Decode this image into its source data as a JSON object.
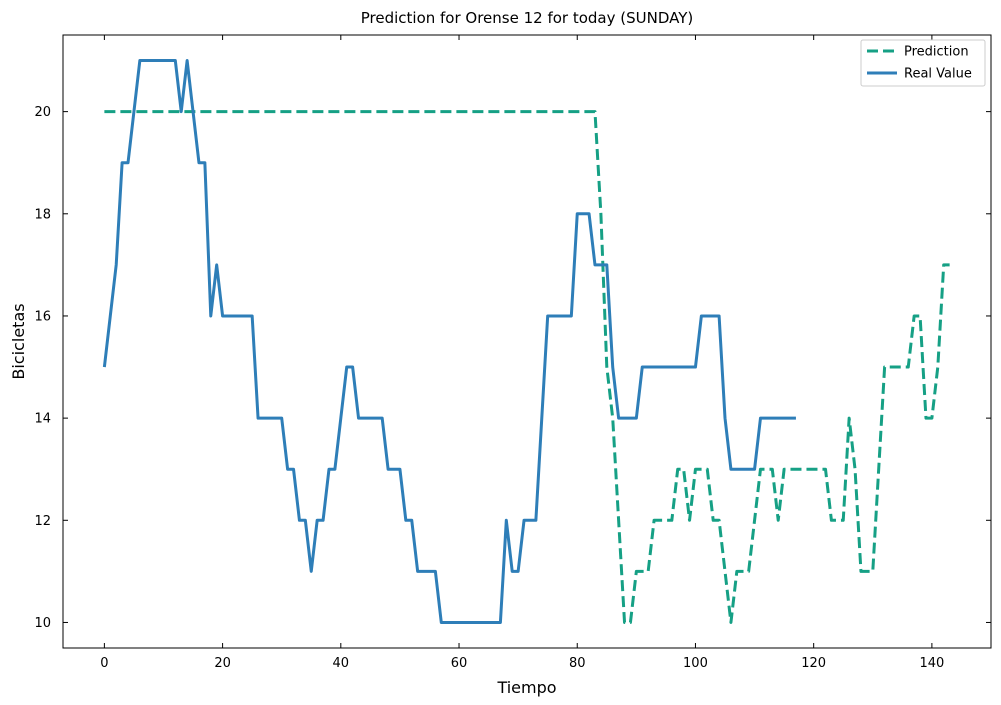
{
  "chart_data": {
    "type": "line",
    "title": "Prediction for Orense 12 for today (SUNDAY)",
    "xlabel": "Tiempo",
    "ylabel": "Bicicletas",
    "xlim": [
      -7,
      150
    ],
    "ylim": [
      9.5,
      21.5
    ],
    "xticks": [
      0,
      20,
      40,
      60,
      80,
      100,
      120,
      140
    ],
    "yticks": [
      10,
      12,
      14,
      16,
      18,
      20
    ],
    "grid": false,
    "legend_position": "top-right",
    "series": [
      {
        "name": "Prediction",
        "color": "#16a085",
        "style": "dashed",
        "x": [
          0,
          83,
          84,
          85,
          86,
          87,
          88,
          89,
          90,
          91,
          92,
          93,
          94,
          95,
          96,
          97,
          98,
          99,
          100,
          101,
          102,
          103,
          104,
          105,
          106,
          107,
          108,
          109,
          110,
          111,
          112,
          113,
          114,
          115,
          116,
          117,
          118,
          119,
          120,
          121,
          122,
          123,
          124,
          125,
          126,
          127,
          128,
          129,
          130,
          131,
          132,
          133,
          134,
          135,
          136,
          137,
          138,
          139,
          140,
          141,
          142,
          143
        ],
        "y": [
          20,
          20,
          18,
          15,
          14,
          12,
          10,
          10,
          11,
          11,
          11,
          12,
          12,
          12,
          12,
          13,
          13,
          12,
          13,
          13,
          13,
          12,
          12,
          11,
          10,
          11,
          11,
          11,
          12,
          13,
          13,
          13,
          12,
          13,
          13,
          13,
          13,
          13,
          13,
          13,
          13,
          12,
          12,
          12,
          14,
          13,
          11,
          11,
          11,
          13,
          15,
          15,
          15,
          15,
          15,
          16,
          16,
          14,
          14,
          15,
          17,
          17
        ]
      },
      {
        "name": "Real Value",
        "color": "#2e7eb8",
        "style": "solid",
        "x": [
          0,
          1,
          2,
          3,
          4,
          5,
          6,
          7,
          8,
          9,
          10,
          11,
          12,
          13,
          14,
          15,
          16,
          17,
          18,
          19,
          20,
          21,
          22,
          23,
          24,
          25,
          26,
          27,
          28,
          29,
          30,
          31,
          32,
          33,
          34,
          35,
          36,
          37,
          38,
          39,
          40,
          41,
          42,
          43,
          44,
          45,
          46,
          47,
          48,
          49,
          50,
          51,
          52,
          53,
          54,
          55,
          56,
          57,
          58,
          59,
          60,
          61,
          62,
          63,
          64,
          65,
          66,
          67,
          68,
          69,
          70,
          71,
          72,
          73,
          74,
          75,
          76,
          77,
          78,
          79,
          80,
          81,
          82,
          83,
          84,
          85,
          86,
          87,
          88,
          89,
          90,
          91,
          92,
          93,
          94,
          95,
          96,
          97,
          98,
          99,
          100,
          101,
          102,
          103,
          104,
          105,
          106,
          107,
          108,
          109,
          110,
          111,
          112,
          113,
          114,
          115,
          116,
          117
        ],
        "y": [
          15,
          16,
          17,
          19,
          19,
          20,
          21,
          21,
          21,
          21,
          21,
          21,
          21,
          20,
          21,
          20,
          19,
          19,
          16,
          17,
          16,
          16,
          16,
          16,
          16,
          16,
          14,
          14,
          14,
          14,
          14,
          13,
          13,
          12,
          12,
          11,
          12,
          12,
          13,
          13,
          14,
          15,
          15,
          14,
          14,
          14,
          14,
          14,
          13,
          13,
          13,
          12,
          12,
          11,
          11,
          11,
          11,
          10,
          10,
          10,
          10,
          10,
          10,
          10,
          10,
          10,
          10,
          10,
          12,
          11,
          11,
          12,
          12,
          12,
          14,
          16,
          16,
          16,
          16,
          16,
          18,
          18,
          18,
          17,
          17,
          17,
          15,
          14,
          14,
          14,
          14,
          15,
          15,
          15,
          15,
          15,
          15,
          15,
          15,
          15,
          15,
          16,
          16,
          16,
          16,
          14,
          13,
          13,
          13,
          13,
          13,
          14,
          14,
          14,
          14,
          14,
          14,
          14
        ]
      }
    ]
  }
}
